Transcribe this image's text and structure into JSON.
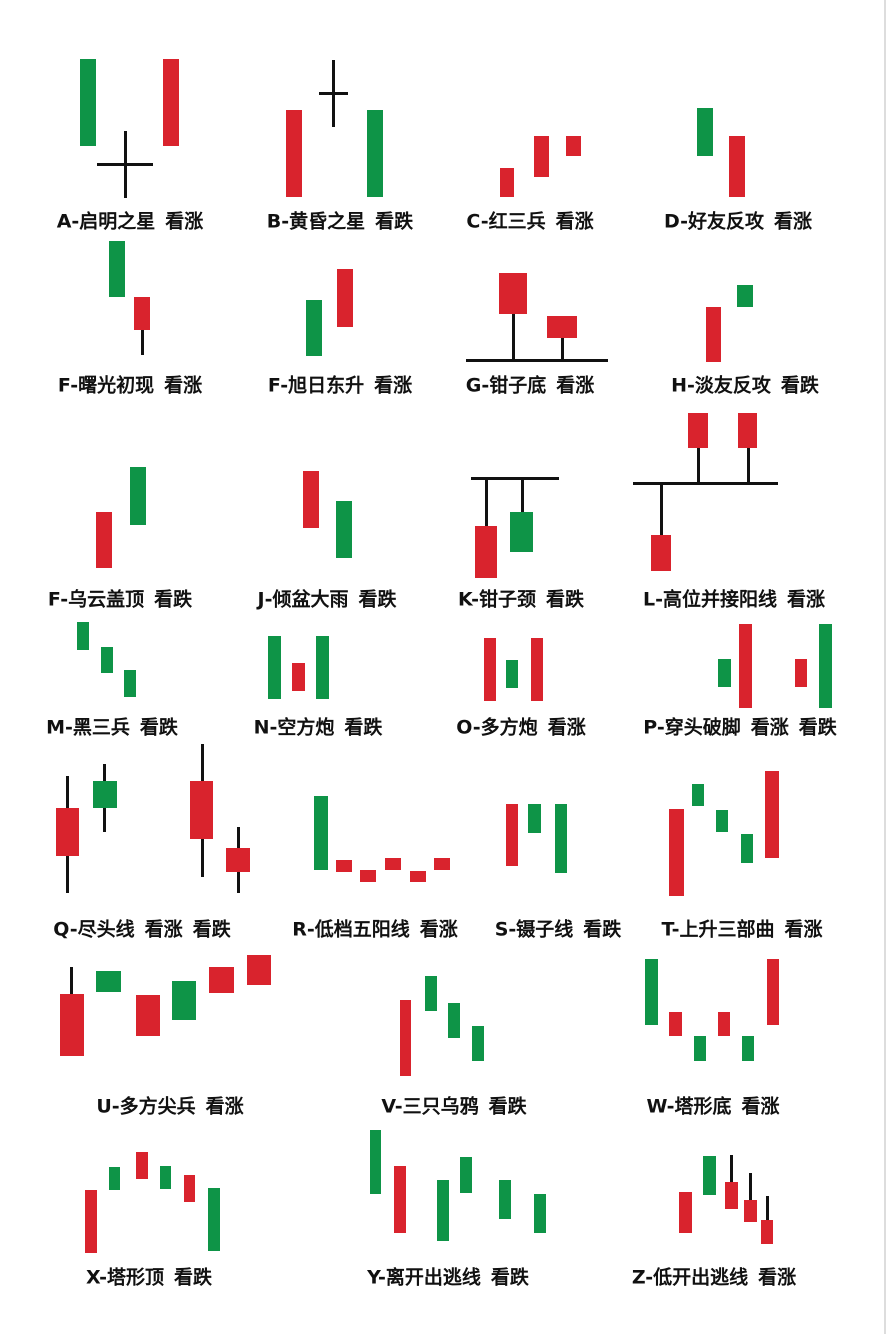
{
  "colors": {
    "bullish": "#d9232d",
    "bearish": "#0e9447",
    "line": "#111111"
  },
  "patterns": [
    {
      "name": "A-启明之星",
      "signals": [
        "看涨"
      ]
    },
    {
      "name": "B-黄昏之星",
      "signals": [
        "看跌"
      ]
    },
    {
      "name": "C-红三兵",
      "signals": [
        "看涨"
      ]
    },
    {
      "name": "D-好友反攻",
      "signals": [
        "看涨"
      ]
    },
    {
      "name": "F-曙光初现",
      "signals": [
        "看涨"
      ]
    },
    {
      "name": "F-旭日东升",
      "signals": [
        "看涨"
      ]
    },
    {
      "name": "G-钳子底",
      "signals": [
        "看涨"
      ]
    },
    {
      "name": "H-淡友反攻",
      "signals": [
        "看跌"
      ]
    },
    {
      "name": "F-乌云盖顶",
      "signals": [
        "看跌"
      ]
    },
    {
      "name": "J-倾盆大雨",
      "signals": [
        "看跌"
      ]
    },
    {
      "name": "K-钳子颈",
      "signals": [
        "看跌"
      ]
    },
    {
      "name": "L-高位并接阳线",
      "signals": [
        "看涨"
      ]
    },
    {
      "name": "M-黑三兵",
      "signals": [
        "看跌"
      ]
    },
    {
      "name": "N-空方炮",
      "signals": [
        "看跌"
      ]
    },
    {
      "name": "O-多方炮",
      "signals": [
        "看涨"
      ]
    },
    {
      "name": "P-穿头破脚",
      "signals": [
        "看涨",
        "看跌"
      ]
    },
    {
      "name": "Q-尽头线",
      "signals": [
        "看涨",
        "看跌"
      ]
    },
    {
      "name": "R-低档五阳线",
      "signals": [
        "看涨"
      ]
    },
    {
      "name": "S-镊子线",
      "signals": [
        "看跌"
      ]
    },
    {
      "name": "T-上升三部曲",
      "signals": [
        "看涨"
      ]
    },
    {
      "name": "U-多方尖兵",
      "signals": [
        "看涨"
      ]
    },
    {
      "name": "V-三只乌鸦",
      "signals": [
        "看跌"
      ]
    },
    {
      "name": "W-塔形底",
      "signals": [
        "看涨"
      ]
    },
    {
      "name": "X-塔形顶",
      "signals": [
        "看跌"
      ]
    },
    {
      "name": "Y-离开出逃线",
      "signals": [
        "看跌"
      ]
    },
    {
      "name": "Z-低开出逃线",
      "signals": [
        "看涨"
      ]
    }
  ]
}
